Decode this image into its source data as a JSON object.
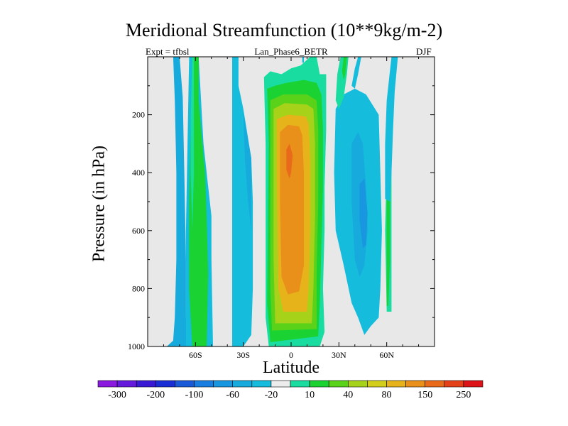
{
  "chart_data": {
    "type": "heatmap",
    "title": "Meridional Streamfunction (10**9kg/m-2)",
    "left_string": "Expt = tfbsl",
    "center_string": "Lan_Phase6_BETR",
    "right_string": "DJF",
    "xlabel": "Latitude",
    "ylabel": "Pressure (in hPa)",
    "xlim": [
      -90,
      90
    ],
    "ylim": [
      1000,
      0
    ],
    "x_ticks": [
      {
        "value": -60,
        "label": "60S"
      },
      {
        "value": -30,
        "label": "30S"
      },
      {
        "value": 0,
        "label": "0"
      },
      {
        "value": 30,
        "label": "30N"
      },
      {
        "value": 60,
        "label": "60N"
      }
    ],
    "y_ticks": [
      {
        "value": 200,
        "label": "200"
      },
      {
        "value": 400,
        "label": "400"
      },
      {
        "value": 600,
        "label": "600"
      },
      {
        "value": 800,
        "label": "800"
      },
      {
        "value": 1000,
        "label": "1000"
      }
    ],
    "background_color": "#e8e8e8",
    "colorbar": {
      "colors": [
        "#8a1ae0",
        "#6419dc",
        "#3a19d6",
        "#1a2ed6",
        "#1a5ad8",
        "#1a7ee0",
        "#1896e0",
        "#17aadc",
        "#15bcdc",
        "#ececec",
        "#18dca0",
        "#1ad232",
        "#5ad21a",
        "#a6d21a",
        "#d2ce1a",
        "#e6b41a",
        "#e8901a",
        "#e86a1a",
        "#e4401a",
        "#dc141a"
      ],
      "labels": [
        "-300",
        "-200",
        "-100",
        "-60",
        "-20",
        "10",
        "40",
        "80",
        "150",
        "250"
      ]
    },
    "regions": [
      {
        "name": "sh-outer-blue-cell",
        "color_index": 7,
        "points": [
          [
            -78,
            1000
          ],
          [
            -74,
            980
          ],
          [
            -73,
            900
          ],
          [
            -72,
            700
          ],
          [
            -72,
            400
          ],
          [
            -73,
            150
          ],
          [
            -74,
            0
          ],
          [
            -70,
            0
          ],
          [
            -68,
            140
          ],
          [
            -67,
            400
          ],
          [
            -66,
            700
          ],
          [
            -66,
            900
          ],
          [
            -65,
            980
          ],
          [
            -60,
            1000
          ]
        ]
      },
      {
        "name": "sh-ferrel-blue",
        "color_index": 8,
        "points": [
          [
            -64,
            0
          ],
          [
            -58,
            0
          ],
          [
            -56,
            200
          ],
          [
            -55,
            300
          ],
          [
            -52,
            450
          ],
          [
            -50,
            550
          ],
          [
            -50,
            700
          ],
          [
            -49,
            1000
          ],
          [
            -66,
            1000
          ],
          [
            -66,
            600
          ],
          [
            -65,
            300
          ]
        ]
      },
      {
        "name": "sh-ferrel-green",
        "color_index": 11,
        "points": [
          [
            -62,
            0
          ],
          [
            -58,
            0
          ],
          [
            -58,
            150
          ],
          [
            -56,
            280
          ],
          [
            -54,
            400
          ],
          [
            -53,
            550
          ],
          [
            -52,
            750
          ],
          [
            -53,
            1000
          ],
          [
            -62,
            1000
          ],
          [
            -64,
            800
          ],
          [
            -64,
            500
          ],
          [
            -63,
            250
          ]
        ]
      },
      {
        "name": "sh-ferrel-pale-inner",
        "color_index": 10,
        "points": [
          [
            -62,
            0
          ],
          [
            -61,
            0
          ],
          [
            -61,
            200
          ],
          [
            -61,
            400
          ],
          [
            -62,
            600
          ],
          [
            -63,
            400
          ],
          [
            -63,
            200
          ]
        ]
      },
      {
        "name": "sh-midlat-blue",
        "color_index": 8,
        "points": [
          [
            -37,
            0
          ],
          [
            -33,
            0
          ],
          [
            -33,
            100
          ],
          [
            -30,
            180
          ],
          [
            -25,
            350
          ],
          [
            -24,
            500
          ],
          [
            -24,
            800
          ],
          [
            -25,
            960
          ],
          [
            -30,
            1000
          ],
          [
            -37,
            1000
          ],
          [
            -37,
            500
          ]
        ]
      },
      {
        "name": "sh-midlat-dark-blue",
        "color_index": 7,
        "points": [
          [
            -30,
            190
          ],
          [
            -25,
            350
          ],
          [
            -25,
            600
          ],
          [
            -27,
            500
          ],
          [
            -29,
            350
          ]
        ]
      },
      {
        "name": "hadley-band-10",
        "color_index": 10,
        "points": [
          [
            -17,
            70
          ],
          [
            -13,
            50
          ],
          [
            -6,
            60
          ],
          [
            0,
            40
          ],
          [
            6,
            30
          ],
          [
            12,
            0
          ],
          [
            16,
            0
          ],
          [
            18,
            60
          ],
          [
            22,
            60
          ],
          [
            22,
            250
          ],
          [
            21,
            450
          ],
          [
            21,
            600
          ],
          [
            20,
            800
          ],
          [
            21,
            950
          ],
          [
            18,
            1000
          ],
          [
            -14,
            1000
          ],
          [
            -16,
            900
          ],
          [
            -16,
            300
          ]
        ]
      },
      {
        "name": "hadley-band-40",
        "color_index": 11,
        "points": [
          [
            -15,
            110
          ],
          [
            -10,
            100
          ],
          [
            -3,
            90
          ],
          [
            8,
            80
          ],
          [
            16,
            90
          ],
          [
            19,
            130
          ],
          [
            20,
            250
          ],
          [
            20,
            450
          ],
          [
            19,
            650
          ],
          [
            18,
            850
          ],
          [
            17,
            965
          ],
          [
            -13,
            985
          ],
          [
            -15,
            850
          ],
          [
            -14,
            300
          ]
        ]
      },
      {
        "name": "hadley-band-80",
        "color_index": 12,
        "points": [
          [
            -13,
            150
          ],
          [
            -5,
            130
          ],
          [
            10,
            130
          ],
          [
            16,
            150
          ],
          [
            17,
            250
          ],
          [
            17,
            500
          ],
          [
            16,
            750
          ],
          [
            16,
            940
          ],
          [
            -12,
            945
          ],
          [
            -13,
            800
          ],
          [
            -13,
            300
          ]
        ]
      },
      {
        "name": "hadley-band-150",
        "color_index": 13,
        "points": [
          [
            -11,
            180
          ],
          [
            -4,
            160
          ],
          [
            10,
            165
          ],
          [
            14,
            180
          ],
          [
            15,
            300
          ],
          [
            15,
            550
          ],
          [
            14,
            800
          ],
          [
            13,
            920
          ],
          [
            -10,
            920
          ],
          [
            -11,
            700
          ],
          [
            -11,
            300
          ]
        ]
      },
      {
        "name": "hadley-band-250",
        "color_index": 15,
        "points": [
          [
            -9,
            215
          ],
          [
            -2,
            200
          ],
          [
            9,
            205
          ],
          [
            11,
            230
          ],
          [
            12,
            350
          ],
          [
            12,
            600
          ],
          [
            11,
            800
          ],
          [
            10,
            880
          ],
          [
            -5,
            880
          ],
          [
            -8,
            800
          ],
          [
            -9,
            400
          ]
        ]
      },
      {
        "name": "hadley-band-300",
        "color_index": 16,
        "points": [
          [
            -7,
            260
          ],
          [
            -2,
            235
          ],
          [
            5,
            240
          ],
          [
            7,
            270
          ],
          [
            8,
            400
          ],
          [
            8,
            600
          ],
          [
            8,
            720
          ],
          [
            5,
            810
          ],
          [
            -2,
            820
          ],
          [
            -6,
            760
          ],
          [
            -7,
            500
          ]
        ]
      },
      {
        "name": "hadley-core-max",
        "color_index": 17,
        "points": [
          [
            -3,
            320
          ],
          [
            -1,
            300
          ],
          [
            1,
            340
          ],
          [
            0,
            400
          ],
          [
            -1,
            420
          ],
          [
            -3,
            390
          ]
        ]
      },
      {
        "name": "nh-cell-blue",
        "color_index": 8,
        "points": [
          [
            28,
            180
          ],
          [
            33,
            130
          ],
          [
            40,
            110
          ],
          [
            47,
            130
          ],
          [
            55,
            200
          ],
          [
            56,
            400
          ],
          [
            57,
            600
          ],
          [
            56,
            800
          ],
          [
            55,
            900
          ],
          [
            50,
            930
          ],
          [
            46,
            960
          ],
          [
            42,
            900
          ],
          [
            38,
            850
          ],
          [
            33,
            720
          ],
          [
            28,
            600
          ],
          [
            27,
            400
          ]
        ]
      },
      {
        "name": "nh-cell-mid-blue",
        "color_index": 7,
        "points": [
          [
            38,
            300
          ],
          [
            42,
            260
          ],
          [
            45,
            300
          ],
          [
            47,
            450
          ],
          [
            48,
            600
          ],
          [
            46,
            720
          ],
          [
            43,
            760
          ],
          [
            40,
            700
          ],
          [
            38,
            500
          ]
        ]
      },
      {
        "name": "nh-cell-dark-blue",
        "color_index": 6,
        "points": [
          [
            43,
            440
          ],
          [
            46,
            420
          ],
          [
            48,
            540
          ],
          [
            47,
            650
          ],
          [
            45,
            660
          ],
          [
            43,
            560
          ]
        ]
      },
      {
        "name": "nh-high-lat-green",
        "color_index": 10,
        "points": [
          [
            60,
            360
          ],
          [
            63,
            360
          ],
          [
            63,
            600
          ],
          [
            63,
            880
          ],
          [
            60,
            880
          ],
          [
            59,
            600
          ]
        ]
      },
      {
        "name": "nh-high-lat-green-core",
        "color_index": 11,
        "points": [
          [
            60,
            420
          ],
          [
            62,
            420
          ],
          [
            62,
            700
          ],
          [
            61,
            860
          ],
          [
            60,
            860
          ],
          [
            60,
            600
          ]
        ]
      },
      {
        "name": "nh-polar-blue",
        "color_index": 8,
        "points": [
          [
            63,
            0
          ],
          [
            67,
            0
          ],
          [
            65,
            120
          ],
          [
            64,
            250
          ],
          [
            63,
            400
          ],
          [
            62,
            500
          ],
          [
            59,
            490
          ],
          [
            59,
            300
          ],
          [
            60,
            150
          ]
        ]
      },
      {
        "name": "nh-top-green-streak",
        "color_index": 10,
        "points": [
          [
            31,
            0
          ],
          [
            36,
            0
          ],
          [
            35,
            60
          ],
          [
            33,
            140
          ],
          [
            30,
            180
          ],
          [
            28,
            150
          ],
          [
            29,
            60
          ]
        ]
      },
      {
        "name": "nh-top-green-streak-2",
        "color_index": 11,
        "points": [
          [
            33,
            0
          ],
          [
            35,
            0
          ],
          [
            34,
            60
          ],
          [
            33,
            80
          ],
          [
            32,
            50
          ]
        ]
      },
      {
        "name": "nh-top-blue-streak",
        "color_index": 8,
        "points": [
          [
            42,
            0
          ],
          [
            44,
            0
          ],
          [
            42,
            60
          ],
          [
            40,
            110
          ],
          [
            38,
            100
          ],
          [
            40,
            40
          ]
        ]
      },
      {
        "name": "tropical-top-blip",
        "color_index": 8,
        "points": [
          [
            7,
            0
          ],
          [
            8,
            0
          ],
          [
            8,
            20
          ],
          [
            7,
            20
          ]
        ]
      }
    ]
  }
}
